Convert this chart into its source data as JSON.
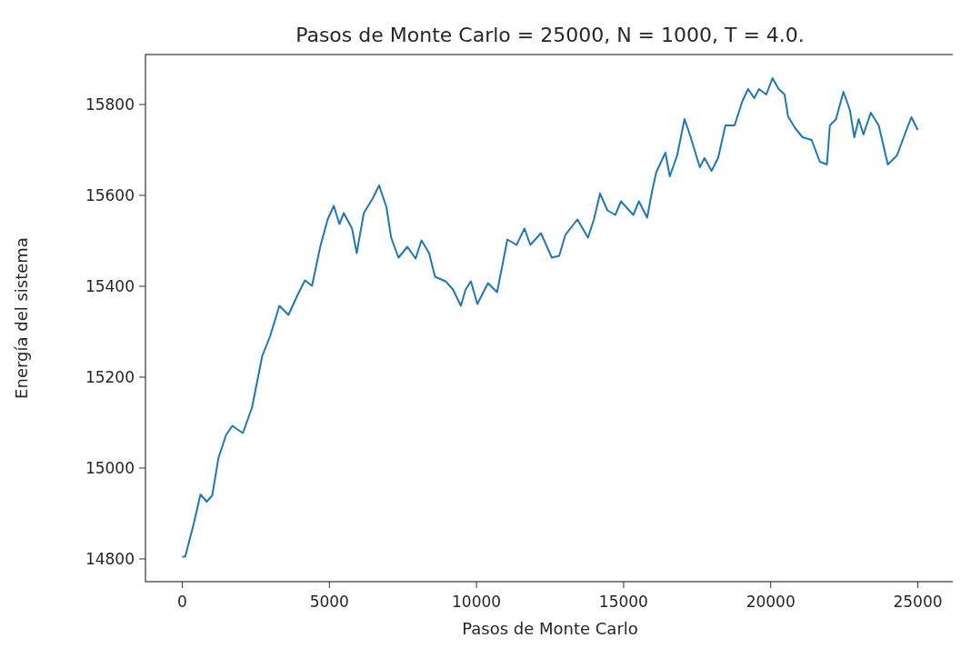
{
  "chart_data": {
    "type": "line",
    "title": "Pasos de Monte Carlo = 25000, N = 1000, T = 4.0.",
    "xlabel": "Pasos de Monte Carlo",
    "ylabel": "Energía del sistema",
    "xlim": [
      -1250,
      26250
    ],
    "ylim": [
      14750,
      15910
    ],
    "xticks": [
      0,
      5000,
      10000,
      15000,
      20000,
      25000
    ],
    "yticks": [
      14800,
      15000,
      15200,
      15400,
      15600,
      15800
    ],
    "series": [
      {
        "color": "#1f77b4",
        "x": [
          0,
          100,
          400,
          620,
          830,
          1020,
          1230,
          1490,
          1700,
          2060,
          2370,
          2720,
          2990,
          3300,
          3610,
          3920,
          4170,
          4410,
          4690,
          4940,
          5150,
          5340,
          5490,
          5770,
          5930,
          6170,
          6480,
          6690,
          6940,
          7100,
          7350,
          7650,
          7930,
          8130,
          8390,
          8590,
          8950,
          9200,
          9470,
          9630,
          9810,
          10030,
          10390,
          10700,
          10900,
          11050,
          11360,
          11630,
          11830,
          12190,
          12560,
          12810,
          13020,
          13430,
          13790,
          13990,
          14200,
          14450,
          14720,
          14910,
          15330,
          15520,
          15800,
          15960,
          16110,
          16420,
          16570,
          16820,
          17070,
          17280,
          17590,
          17750,
          17990,
          18210,
          18460,
          18770,
          19040,
          19230,
          19440,
          19600,
          19850,
          20060,
          20270,
          20470,
          20590,
          20830,
          21080,
          21390,
          21670,
          21910,
          22010,
          22220,
          22470,
          22690,
          22840,
          22990,
          23150,
          23400,
          23670,
          23980,
          24290,
          24600,
          24780,
          25000
        ],
        "values": [
          14805,
          14805,
          14880,
          14942,
          14926,
          14940,
          15022,
          15073,
          15093,
          15077,
          15133,
          15247,
          15291,
          15357,
          15337,
          15381,
          15413,
          15401,
          15487,
          15547,
          15577,
          15537,
          15561,
          15527,
          15473,
          15561,
          15594,
          15622,
          15574,
          15507,
          15463,
          15487,
          15461,
          15501,
          15473,
          15421,
          15411,
          15393,
          15357,
          15393,
          15411,
          15361,
          15407,
          15387,
          15453,
          15503,
          15491,
          15527,
          15491,
          15517,
          15463,
          15467,
          15513,
          15547,
          15507,
          15547,
          15604,
          15567,
          15557,
          15587,
          15557,
          15587,
          15551,
          15607,
          15651,
          15694,
          15642,
          15688,
          15768,
          15728,
          15662,
          15682,
          15654,
          15682,
          15754,
          15754,
          15808,
          15834,
          15814,
          15834,
          15822,
          15858,
          15834,
          15822,
          15774,
          15748,
          15728,
          15722,
          15674,
          15668,
          15754,
          15768,
          15828,
          15788,
          15728,
          15768,
          15734,
          15782,
          15754,
          15668,
          15688,
          15742,
          15772,
          15744
        ]
      }
    ]
  }
}
